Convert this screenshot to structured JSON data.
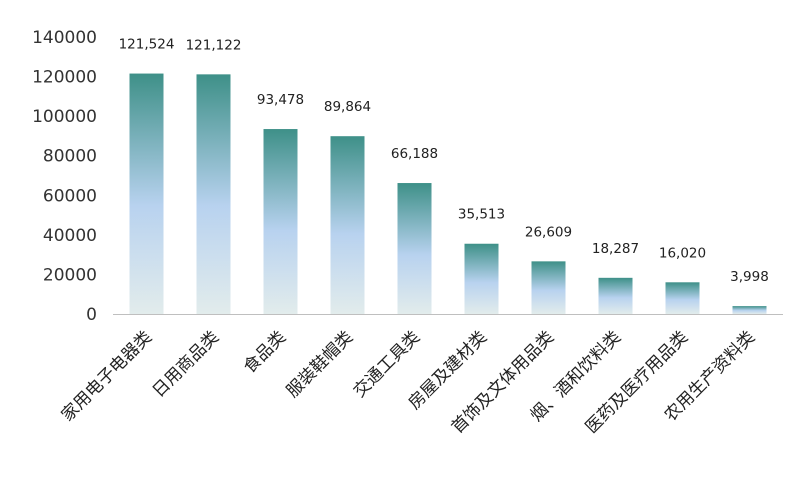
{
  "chart_data": {
    "type": "bar",
    "categories": [
      "家用电子电器类",
      "日用商品类",
      "食品类",
      "服装鞋帽类",
      "交通工具类",
      "房屋及建材类",
      "首饰及文体用品类",
      "烟、酒和饮料类",
      "医药及医疗用品类",
      "农用生产资料类"
    ],
    "values": [
      121524,
      121122,
      93478,
      89864,
      66188,
      35513,
      26609,
      18287,
      16020,
      3998
    ],
    "data_labels": [
      "121,524",
      "121,122",
      "93,478",
      "89,864",
      "66,188",
      "35,513",
      "26,609",
      "18,287",
      "16,020",
      "3,998"
    ],
    "y_ticks": [
      "0",
      "20000",
      "40000",
      "60000",
      "80000",
      "100000",
      "120000",
      "140000"
    ],
    "title": "",
    "xlabel": "",
    "ylabel": "",
    "ylim": [
      0,
      140000
    ],
    "grid": false,
    "legend": "none",
    "colors": {
      "bar_top": "#3e9088",
      "bar_mid": "#b8d2ef",
      "bar_bottom": "#e2ecec",
      "axis": "#bfbfbf"
    }
  }
}
